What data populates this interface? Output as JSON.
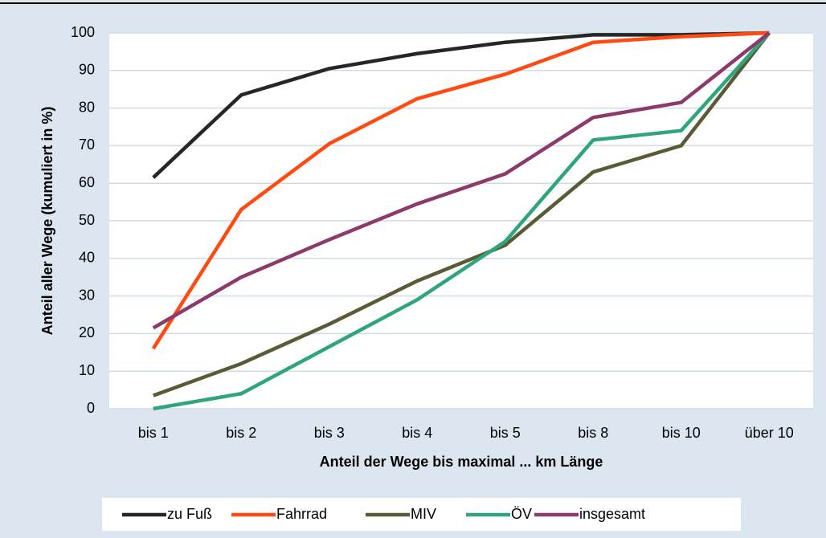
{
  "chart_data": {
    "type": "line",
    "x_label": "Anteil der Wege bis maximal ... km Länge",
    "y_label": "Anteil aller Wege (kumuliert in %)",
    "categories": [
      "bis 1",
      "bis 2",
      "bis 3",
      "bis 4",
      "bis 5",
      "bis 8",
      "bis 10",
      "über 10"
    ],
    "series": [
      {
        "name": "zu Fuß",
        "color": "#262626",
        "values": [
          61.5,
          83.5,
          90.5,
          94.5,
          97.5,
          99.5,
          99.5,
          100
        ]
      },
      {
        "name": "Fahrrad",
        "color": "#ff4b12",
        "values": [
          16,
          53,
          70.5,
          82.5,
          89,
          97.5,
          99,
          100
        ]
      },
      {
        "name": "MIV",
        "color": "#5b5a36",
        "values": [
          3.5,
          12,
          22.5,
          34,
          43.5,
          63,
          70,
          100
        ]
      },
      {
        "name": "ÖV",
        "color": "#2ea57a",
        "values": [
          0,
          4,
          16.5,
          29,
          44.5,
          71.5,
          74,
          100
        ]
      },
      {
        "name": "insgesamt",
        "color": "#8c3a6c",
        "values": [
          21.5,
          35,
          45,
          54.5,
          62.5,
          77.5,
          81.5,
          100
        ]
      }
    ],
    "ylim": [
      0,
      100
    ],
    "yticks": [
      0,
      10,
      20,
      30,
      40,
      50,
      60,
      70,
      80,
      90,
      100
    ],
    "grid": true,
    "legend": "bottom"
  }
}
